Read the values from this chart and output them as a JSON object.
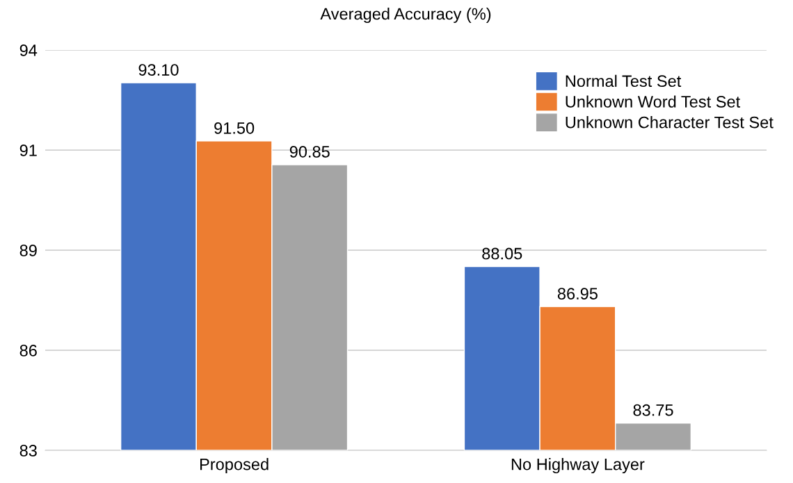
{
  "chart_data": {
    "type": "bar",
    "title": "Averaged Accuracy (%)",
    "categories": [
      "Proposed",
      "No Highway Layer"
    ],
    "series": [
      {
        "name": "Normal Test Set",
        "color": "#4472c4",
        "values": [
          93.1,
          88.05
        ],
        "value_labels": [
          "93.10",
          "88.05"
        ]
      },
      {
        "name": "Unknown Word Test Set",
        "color": "#ed7d31",
        "values": [
          91.5,
          86.95
        ],
        "value_labels": [
          "91.50",
          "86.95"
        ]
      },
      {
        "name": "Unknown Character Test Set",
        "color": "#a5a5a5",
        "values": [
          90.85,
          83.75
        ],
        "value_labels": [
          "90.85",
          "83.75"
        ]
      }
    ],
    "ylim": [
      83,
      94
    ],
    "yticks": [
      83,
      {
        "value": 85.75,
        "label": "86"
      },
      {
        "value": 88.5,
        "label": "89"
      },
      {
        "value": 91.25,
        "label": "91"
      },
      94
    ],
    "grid": "y",
    "legend": "top right"
  }
}
